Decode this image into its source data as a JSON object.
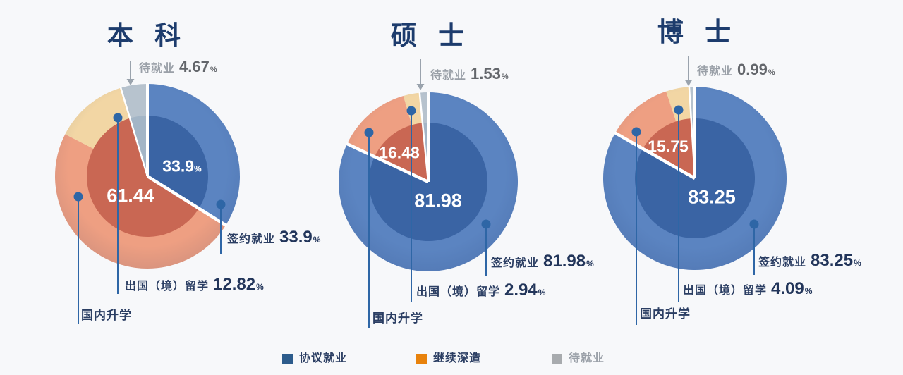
{
  "background_color": "#f7f8fa",
  "chart_data": {
    "type": "pie",
    "unit": "%",
    "charts": [
      {
        "id": "bachelor",
        "title": "本 科",
        "slices": [
          {
            "key": "contract-employment",
            "label": "签约就业",
            "value": 33.9,
            "display": "33.9"
          },
          {
            "key": "domestic-further-study",
            "label": "国内升学",
            "value": 48.62,
            "display": ""
          },
          {
            "key": "study-abroad",
            "label": "出国（境）留学",
            "value": 12.82,
            "display": "12.82"
          },
          {
            "key": "awaiting-employment",
            "label": "待就业",
            "value": 4.67,
            "display": "4.67"
          }
        ],
        "inner_labels": {
          "blue": "33.9",
          "blue_suffix": "%",
          "red": "61.44"
        }
      },
      {
        "id": "master",
        "title": "硕 士",
        "slices": [
          {
            "key": "contract-employment",
            "label": "签约就业",
            "value": 81.98,
            "display": "81.98"
          },
          {
            "key": "domestic-further-study",
            "label": "国内升学",
            "value": 13.55,
            "display": ""
          },
          {
            "key": "study-abroad",
            "label": "出国（境）留学",
            "value": 2.94,
            "display": "2.94"
          },
          {
            "key": "awaiting-employment",
            "label": "待就业",
            "value": 1.53,
            "display": "1.53"
          }
        ],
        "inner_labels": {
          "blue": "81.98",
          "red": "16.48"
        }
      },
      {
        "id": "doctor",
        "title": "博 士",
        "slices": [
          {
            "key": "contract-employment",
            "label": "签约就业",
            "value": 83.25,
            "display": "83.25"
          },
          {
            "key": "domestic-further-study",
            "label": "国内升学",
            "value": 11.67,
            "display": ""
          },
          {
            "key": "study-abroad",
            "label": "出国（境）留学",
            "value": 4.09,
            "display": "4.09"
          },
          {
            "key": "awaiting-employment",
            "label": "待就业",
            "value": 0.99,
            "display": "0.99"
          }
        ],
        "inner_labels": {
          "blue": "83.25",
          "red": "15.75"
        }
      }
    ],
    "colors": {
      "outer": {
        "contract": "#5b84c1",
        "domestic": "#ee9f82",
        "abroad": "#f2d6a4",
        "awaiting": "#b7c3ce"
      },
      "inner": {
        "contract": "#3a64a4",
        "further_study_combined": "#c96753",
        "awaiting": "#a3b5c6"
      },
      "leader": "#2e66a6",
      "arrow": "#9aa3ad",
      "title_text": "#1d3c6d",
      "label_text": "#2b3e63"
    },
    "legend": [
      {
        "label": "协议就业",
        "swatch": "#2d5c8c"
      },
      {
        "label": "继续深造",
        "swatch": "#e8820c"
      },
      {
        "label": "待就业",
        "swatch": "#a8abae"
      }
    ]
  }
}
